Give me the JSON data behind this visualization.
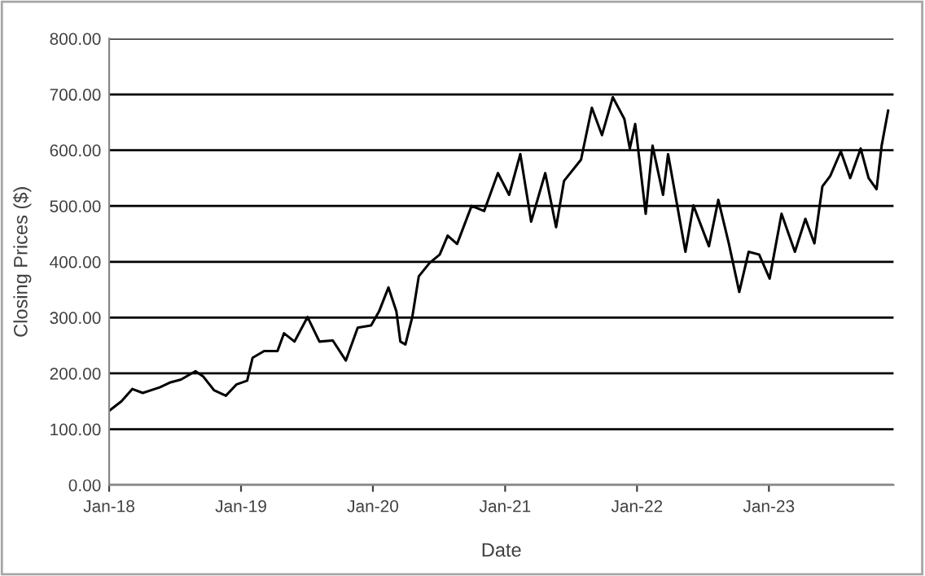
{
  "chart_data": {
    "type": "line",
    "xlabel": "Date",
    "ylabel": "Closing Prices ($)",
    "x": [
      "2018-01-02",
      "2018-02-05",
      "2018-03-07",
      "2018-04-05",
      "2018-05-22",
      "2018-06-21",
      "2018-07-20",
      "2018-08-29",
      "2018-09-20",
      "2018-10-19",
      "2018-11-21",
      "2018-12-20",
      "2019-01-19",
      "2019-02-03",
      "2019-03-07",
      "2019-04-13",
      "2019-05-01",
      "2019-05-30",
      "2019-07-05",
      "2019-08-07",
      "2019-09-13",
      "2019-10-19",
      "2019-11-21",
      "2019-12-28",
      "2020-01-19",
      "2020-02-14",
      "2020-03-07",
      "2020-03-18",
      "2020-04-01",
      "2020-04-20",
      "2020-05-08",
      "2020-06-07",
      "2020-07-05",
      "2020-07-27",
      "2020-08-22",
      "2020-10-01",
      "2020-11-05",
      "2020-12-13",
      "2021-01-13",
      "2021-02-13",
      "2021-03-15",
      "2021-04-23",
      "2021-05-23",
      "2021-06-14",
      "2021-07-31",
      "2021-08-30",
      "2021-09-27",
      "2021-10-27",
      "2021-11-28",
      "2021-12-13",
      "2021-12-28",
      "2022-01-26",
      "2022-02-14",
      "2022-03-15",
      "2022-03-29",
      "2022-05-16",
      "2022-06-07",
      "2022-07-20",
      "2022-08-15",
      "2022-09-13",
      "2022-10-12",
      "2022-11-07",
      "2022-12-06",
      "2023-01-04",
      "2023-02-06",
      "2023-03-15",
      "2023-04-13",
      "2023-05-08",
      "2023-05-30",
      "2023-06-21",
      "2023-07-20",
      "2023-08-15",
      "2023-09-13",
      "2023-10-05",
      "2023-10-27",
      "2023-11-10",
      "2023-11-28"
    ],
    "series": [
      {
        "color": "#000000",
        "values": [
          133,
          150,
          172,
          165,
          175,
          184,
          189,
          204,
          194,
          170,
          160,
          180,
          187,
          228,
          240,
          240,
          272,
          257,
          301,
          257,
          259,
          223,
          282,
          286,
          311,
          354,
          311,
          257,
          252,
          301,
          374,
          398,
          413,
          447,
          432,
          500,
          491,
          559,
          520,
          593,
          472,
          559,
          462,
          545,
          583,
          676,
          627,
          695,
          656,
          603,
          647,
          486,
          608,
          520,
          593,
          418,
          501,
          428,
          511,
          433,
          346,
          418,
          413,
          370,
          486,
          418,
          477,
          433,
          535,
          554,
          598,
          550,
          603,
          550,
          530,
          608,
          671
        ]
      }
    ],
    "xlim": [
      "2018-01-02",
      "2023-12-13"
    ],
    "xticks": [
      {
        "value": "2018-01-02",
        "label": "Jan-18"
      },
      {
        "value": "2019-01-02",
        "label": "Jan-19"
      },
      {
        "value": "2020-01-02",
        "label": "Jan-20"
      },
      {
        "value": "2021-01-02",
        "label": "Jan-21"
      },
      {
        "value": "2022-01-02",
        "label": "Jan-22"
      },
      {
        "value": "2023-01-02",
        "label": "Jan-23"
      }
    ],
    "ylim": [
      0,
      800
    ],
    "yticks": [
      {
        "value": 0,
        "label": "0.00"
      },
      {
        "value": 100,
        "label": "100.00"
      },
      {
        "value": 200,
        "label": "200.00"
      },
      {
        "value": 300,
        "label": "300.00"
      },
      {
        "value": 400,
        "label": "400.00"
      },
      {
        "value": 500,
        "label": "500.00"
      },
      {
        "value": 600,
        "label": "600.00"
      },
      {
        "value": 700,
        "label": "700.00"
      },
      {
        "value": 800,
        "label": "800.00"
      }
    ],
    "grid": "y",
    "marker": "none",
    "line_style": "solid"
  }
}
